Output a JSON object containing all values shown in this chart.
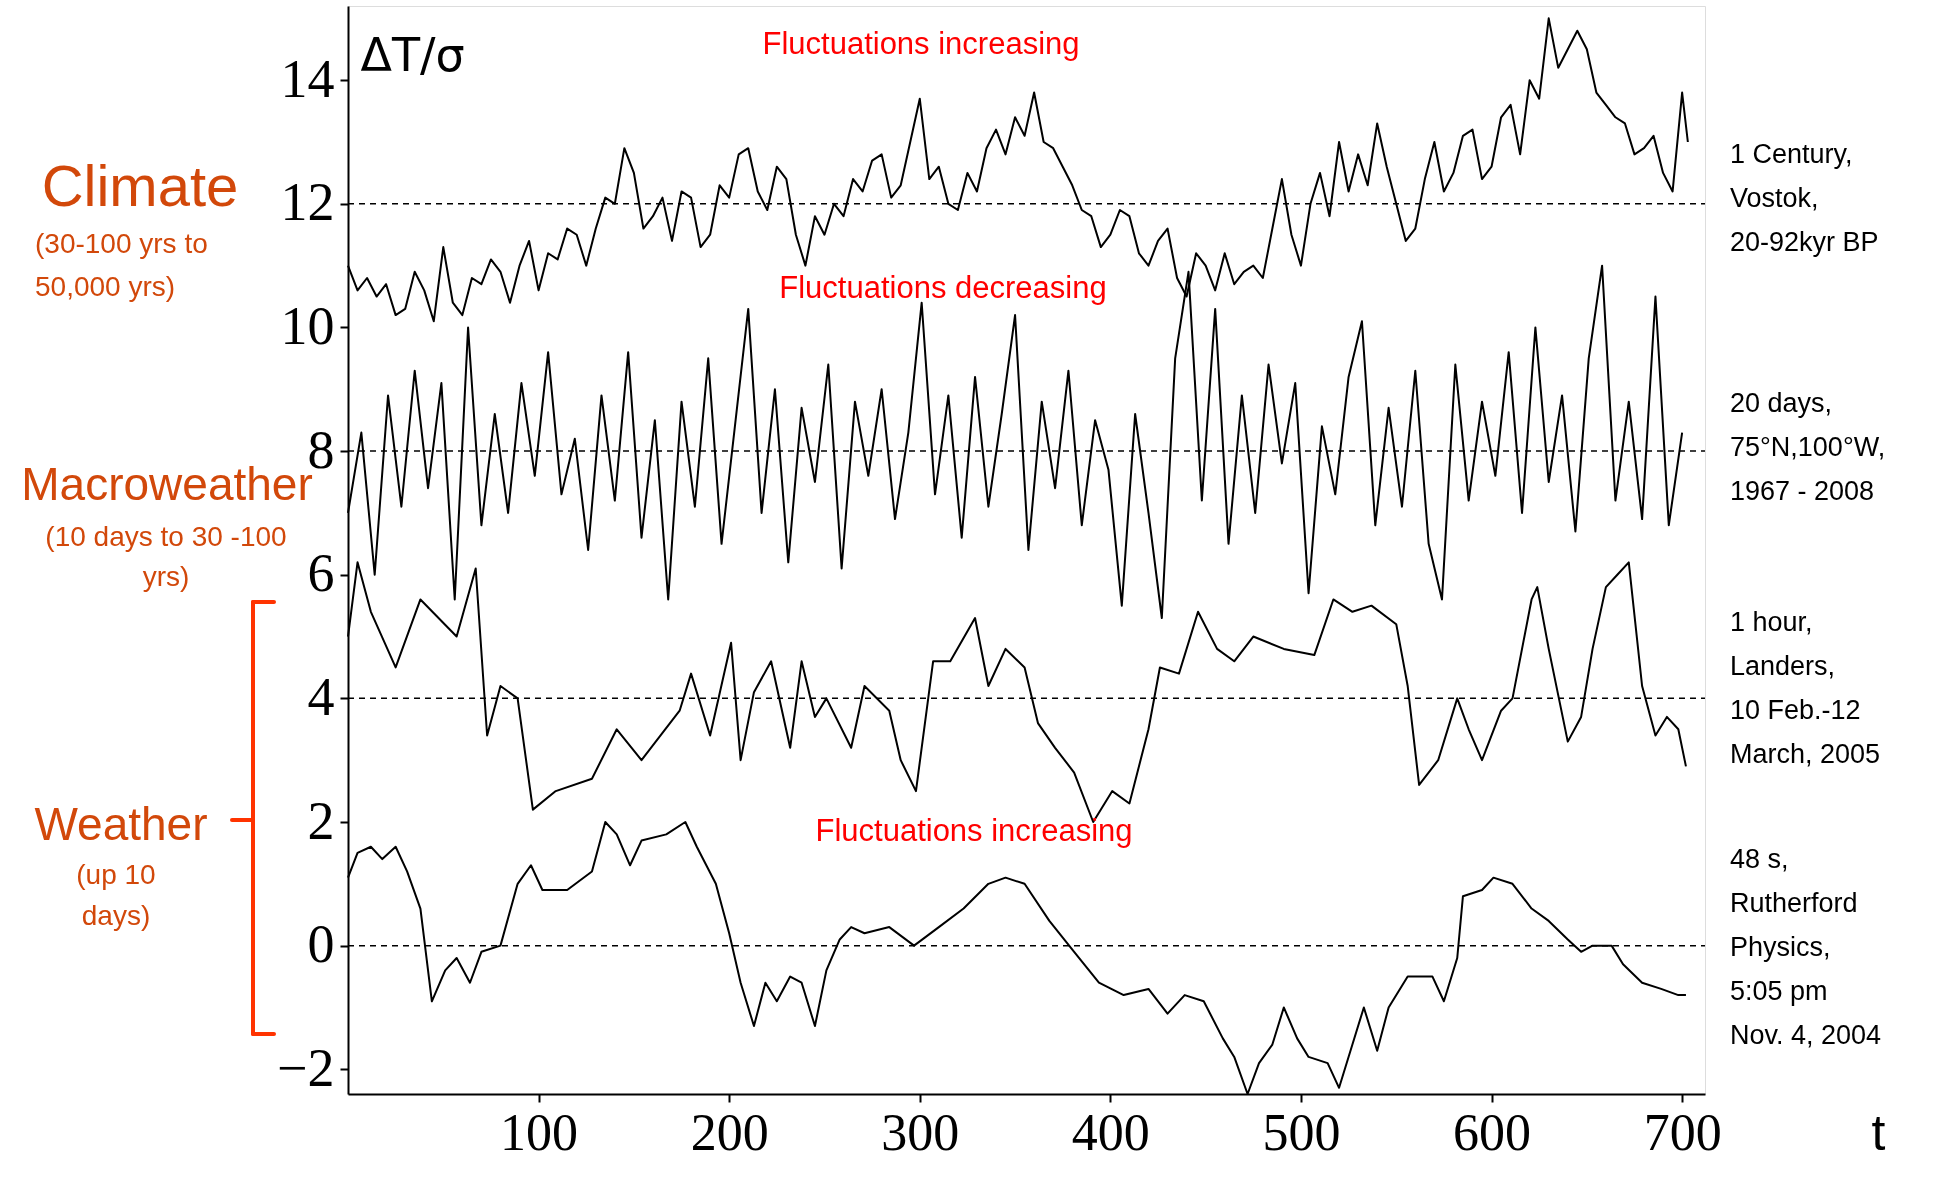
{
  "chart_data": {
    "type": "line",
    "ylabel": "ΔT/σ",
    "xlabel": "t",
    "xlim": [
      0,
      712
    ],
    "xticks": [
      100,
      200,
      300,
      400,
      500,
      600,
      700
    ],
    "ylim": [
      -2.4,
      15.2
    ],
    "yticks": [
      -2,
      0,
      2,
      4,
      6,
      8,
      10,
      12,
      14
    ],
    "grid": false,
    "ref_lines": [
      {
        "axis": "y",
        "value": 12,
        "color": "#000000",
        "line_style": "dashed"
      },
      {
        "axis": "y",
        "value": 8,
        "color": "#000000",
        "line_style": "dashed"
      },
      {
        "axis": "y",
        "value": 4,
        "color": "#000000",
        "line_style": "dashed"
      },
      {
        "axis": "y",
        "value": 0,
        "color": "#000000",
        "line_style": "dashed"
      }
    ],
    "annotations": [
      "Fluctuations increasing",
      "Fluctuations decreasing",
      "Fluctuations increasing",
      "Climate",
      "(30-100 yrs to 50,000 yrs)",
      "Macroweather",
      "(10 days to 30 -100 yrs)",
      "Weather",
      "(up 10 days)"
    ],
    "series": [
      {
        "name": "1 Century, Vostok, 20-92kyr BP",
        "color": "#000000",
        "x": [
          0,
          5,
          10,
          15,
          20,
          25,
          30,
          35,
          40,
          45,
          50,
          55,
          60,
          65,
          70,
          75,
          80,
          85,
          90,
          95,
          100,
          105,
          110,
          115,
          120,
          125,
          130,
          135,
          140,
          145,
          150,
          155,
          160,
          165,
          170,
          175,
          180,
          185,
          190,
          195,
          200,
          205,
          210,
          215,
          220,
          225,
          230,
          235,
          240,
          245,
          250,
          255,
          260,
          265,
          270,
          275,
          280,
          285,
          290,
          295,
          300,
          305,
          310,
          315,
          320,
          325,
          330,
          335,
          340,
          345,
          350,
          355,
          360,
          365,
          370,
          375,
          380,
          385,
          390,
          395,
          400,
          405,
          410,
          415,
          420,
          425,
          430,
          435,
          440,
          445,
          450,
          455,
          460,
          465,
          470,
          475,
          480,
          485,
          490,
          495,
          500,
          505,
          510,
          515,
          520,
          525,
          530,
          535,
          540,
          545,
          550,
          555,
          560,
          565,
          570,
          575,
          580,
          585,
          590,
          595,
          600,
          605,
          610,
          615,
          620,
          625,
          630,
          635,
          640,
          645,
          650,
          655,
          660,
          665,
          670,
          675,
          680,
          685,
          690,
          695,
          700,
          703
        ],
        "values": [
          11.0,
          10.6,
          10.8,
          10.5,
          10.7,
          10.2,
          10.3,
          10.9,
          10.6,
          10.1,
          11.3,
          10.4,
          10.2,
          10.8,
          10.7,
          11.1,
          10.9,
          10.4,
          11.0,
          11.4,
          10.6,
          11.2,
          11.1,
          11.6,
          11.5,
          11.0,
          11.6,
          12.1,
          12.0,
          12.9,
          12.5,
          11.6,
          11.8,
          12.1,
          11.4,
          12.2,
          12.1,
          11.3,
          11.5,
          12.3,
          12.1,
          12.8,
          12.9,
          12.2,
          11.9,
          12.6,
          12.4,
          11.5,
          11.0,
          11.8,
          11.5,
          12.0,
          11.8,
          12.4,
          12.2,
          12.7,
          12.8,
          12.1,
          12.3,
          13.0,
          13.7,
          12.4,
          12.6,
          12.0,
          11.9,
          12.5,
          12.2,
          12.9,
          13.2,
          12.8,
          13.4,
          13.1,
          13.8,
          13.0,
          12.9,
          12.6,
          12.3,
          11.9,
          11.8,
          11.3,
          11.5,
          11.9,
          11.8,
          11.2,
          11.0,
          11.4,
          11.6,
          10.8,
          10.5,
          11.2,
          11.0,
          10.6,
          11.2,
          10.7,
          10.9,
          11.0,
          10.8,
          11.6,
          12.4,
          11.5,
          11.0,
          12.0,
          12.5,
          11.8,
          13.0,
          12.2,
          12.8,
          12.3,
          13.3,
          12.6,
          12.0,
          11.4,
          11.6,
          12.4,
          13.0,
          12.2,
          12.5,
          13.1,
          13.2,
          12.4,
          12.6,
          13.4,
          13.6,
          12.8,
          14.0,
          13.7,
          15.0,
          14.2,
          14.5,
          14.8,
          14.5,
          13.8,
          13.6,
          13.4,
          13.3,
          12.8,
          12.9,
          13.1,
          12.5,
          12.2,
          13.8,
          13.0
        ]
      },
      {
        "name": "20 days, 75°N,100°W, 1967 - 2008",
        "color": "#000000",
        "x": [
          0,
          7,
          14,
          21,
          28,
          35,
          42,
          49,
          56,
          63,
          70,
          77,
          84,
          91,
          98,
          105,
          112,
          119,
          126,
          133,
          140,
          147,
          154,
          161,
          168,
          175,
          182,
          189,
          196,
          203,
          210,
          217,
          224,
          231,
          238,
          245,
          252,
          259,
          266,
          273,
          280,
          287,
          294,
          301,
          308,
          315,
          322,
          329,
          336,
          343,
          350,
          357,
          364,
          371,
          378,
          385,
          392,
          399,
          406,
          413,
          420,
          427,
          434,
          441,
          448,
          455,
          462,
          469,
          476,
          483,
          490,
          497,
          504,
          511,
          518,
          525,
          532,
          539,
          546,
          553,
          560,
          567,
          574,
          581,
          588,
          595,
          602,
          609,
          616,
          623,
          630,
          637,
          644,
          651,
          658,
          665,
          672,
          679,
          686,
          693,
          700
        ],
        "values": [
          7.0,
          8.3,
          6.0,
          8.9,
          7.1,
          9.3,
          7.4,
          9.1,
          5.6,
          10.0,
          6.8,
          8.6,
          7.0,
          9.1,
          7.6,
          9.6,
          7.3,
          8.2,
          6.4,
          8.9,
          7.2,
          9.6,
          6.6,
          8.5,
          5.6,
          8.8,
          7.1,
          9.5,
          6.5,
          8.4,
          10.3,
          7.0,
          9.0,
          6.2,
          8.7,
          7.5,
          9.4,
          6.1,
          8.8,
          7.6,
          9.0,
          6.9,
          8.3,
          10.4,
          7.3,
          8.9,
          6.6,
          9.2,
          7.1,
          8.6,
          10.2,
          6.4,
          8.8,
          7.4,
          9.3,
          6.8,
          8.5,
          7.7,
          5.5,
          8.6,
          7.0,
          5.3,
          9.5,
          10.9,
          7.2,
          10.3,
          6.5,
          8.9,
          7.0,
          9.4,
          7.8,
          9.1,
          5.7,
          8.4,
          7.3,
          9.2,
          10.1,
          6.8,
          8.7,
          7.1,
          9.3,
          6.5,
          5.6,
          9.4,
          7.2,
          8.8,
          7.6,
          9.6,
          7.0,
          10.0,
          7.5,
          8.9,
          6.7,
          9.5,
          11.0,
          7.2,
          8.8,
          6.9,
          10.5,
          6.8,
          8.3
        ]
      },
      {
        "name": "1 hour, Landers, 10 Feb.-12 March, 2005",
        "color": "#000000",
        "x": [
          0,
          5,
          12,
          25,
          38,
          57,
          67,
          73,
          80,
          89,
          97,
          109,
          128,
          141,
          154,
          174,
          180,
          190,
          201,
          206,
          213,
          222,
          232,
          238,
          245,
          251,
          264,
          271,
          284,
          290,
          298,
          307,
          316,
          329,
          336,
          345,
          355,
          362,
          371,
          381,
          391,
          401,
          410,
          420,
          426,
          436,
          446,
          456,
          465,
          475,
          491,
          507,
          517,
          527,
          537,
          550,
          556,
          562,
          572,
          582,
          588,
          595,
          605,
          611,
          621,
          624,
          630,
          640,
          647,
          653,
          660,
          666,
          672,
          679,
          686,
          692,
          698,
          702
        ],
        "values": [
          5.0,
          6.2,
          5.4,
          4.5,
          5.6,
          5.0,
          6.1,
          3.4,
          4.2,
          4.0,
          2.2,
          2.5,
          2.7,
          3.5,
          3.0,
          3.8,
          4.4,
          3.4,
          4.9,
          3.0,
          4.1,
          4.6,
          3.2,
          4.6,
          3.7,
          4.0,
          3.2,
          4.2,
          3.8,
          3.0,
          2.5,
          4.6,
          4.6,
          5.3,
          4.2,
          4.8,
          4.5,
          3.6,
          3.2,
          2.8,
          2.0,
          2.5,
          2.3,
          3.5,
          4.5,
          4.4,
          5.4,
          4.8,
          4.6,
          5.0,
          4.8,
          4.7,
          5.6,
          5.4,
          5.5,
          5.2,
          4.2,
          2.6,
          3.0,
          4.0,
          3.5,
          3.0,
          3.8,
          4.0,
          5.6,
          5.8,
          4.8,
          3.3,
          3.7,
          4.8,
          5.8,
          6.0,
          6.2,
          4.2,
          3.4,
          3.7,
          3.5,
          2.9
        ]
      },
      {
        "name": "48 s, Rutherford Physics, 5:05 pm Nov. 4, 2004",
        "color": "#000000",
        "x": [
          0,
          5,
          12,
          18,
          25,
          31,
          38,
          44,
          51,
          57,
          64,
          70,
          80,
          89,
          96,
          102,
          115,
          128,
          135,
          141,
          148,
          154,
          167,
          177,
          183,
          193,
          200,
          206,
          213,
          219,
          225,
          232,
          238,
          245,
          251,
          258,
          264,
          271,
          284,
          297,
          310,
          323,
          336,
          345,
          355,
          368,
          381,
          394,
          407,
          420,
          430,
          439,
          449,
          459,
          465,
          472,
          478,
          485,
          491,
          498,
          504,
          514,
          520,
          527,
          533,
          540,
          546,
          556,
          569,
          575,
          582,
          585,
          595,
          601,
          611,
          621,
          630,
          640,
          647,
          653,
          663,
          669,
          679,
          689,
          698,
          702
        ],
        "values": [
          1.1,
          1.5,
          1.6,
          1.4,
          1.6,
          1.2,
          0.6,
          -0.9,
          -0.4,
          -0.2,
          -0.6,
          -0.1,
          0.0,
          1.0,
          1.3,
          0.9,
          0.9,
          1.2,
          2.0,
          1.8,
          1.3,
          1.7,
          1.8,
          2.0,
          1.6,
          1.0,
          0.2,
          -0.6,
          -1.3,
          -0.6,
          -0.9,
          -0.5,
          -0.6,
          -1.3,
          -0.4,
          0.1,
          0.3,
          0.2,
          0.3,
          0.0,
          0.3,
          0.6,
          1.0,
          1.1,
          1.0,
          0.4,
          -0.1,
          -0.6,
          -0.8,
          -0.7,
          -1.1,
          -0.8,
          -0.9,
          -1.5,
          -1.8,
          -2.4,
          -1.9,
          -1.6,
          -1.0,
          -1.5,
          -1.8,
          -1.9,
          -2.3,
          -1.6,
          -1.0,
          -1.7,
          -1.0,
          -0.5,
          -0.5,
          -0.9,
          -0.2,
          0.8,
          0.9,
          1.1,
          1.0,
          0.6,
          0.4,
          0.1,
          -0.1,
          0.0,
          0.0,
          -0.3,
          -0.6,
          -0.7,
          -0.8,
          -0.8
        ]
      }
    ]
  }
}
